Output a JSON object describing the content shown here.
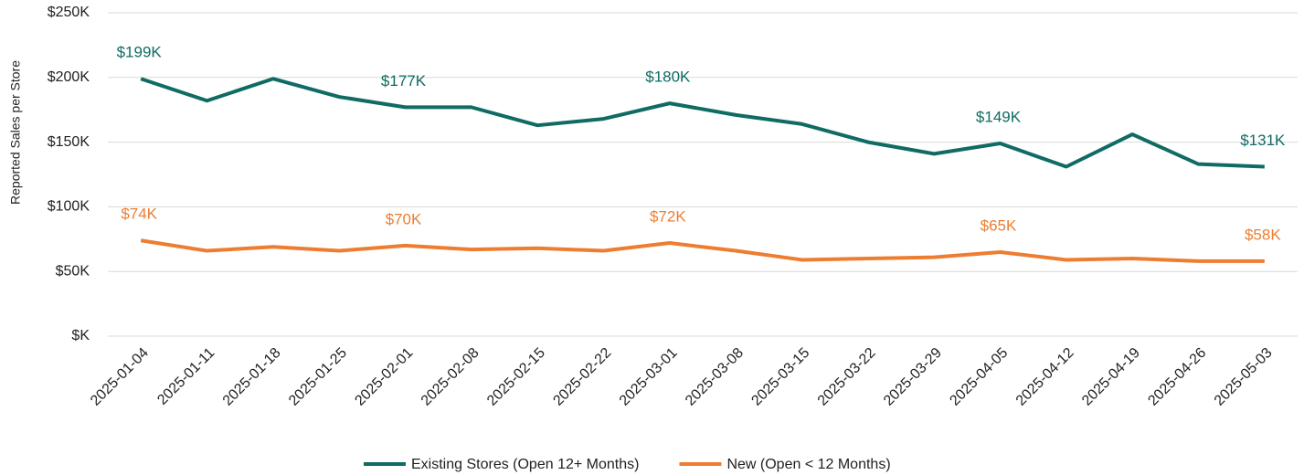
{
  "chart_data": {
    "type": "line",
    "y_label": "Reported Sales per Store",
    "categories": [
      "2025-01-04",
      "2025-01-11",
      "2025-01-18",
      "2025-01-25",
      "2025-02-01",
      "2025-02-08",
      "2025-02-15",
      "2025-02-22",
      "2025-03-01",
      "2025-03-08",
      "2025-03-15",
      "2025-03-22",
      "2025-03-29",
      "2025-04-05",
      "2025-04-12",
      "2025-04-19",
      "2025-04-26",
      "2025-05-03"
    ],
    "series": [
      {
        "name": "Existing Stores (Open 12+ Months)",
        "color": "#0f6b63",
        "values": [
          199000,
          182000,
          199000,
          185000,
          177000,
          177000,
          163000,
          168000,
          180000,
          171000,
          164000,
          150000,
          141000,
          149000,
          131000,
          156000,
          133000,
          131000
        ],
        "value_labels": [
          "$199K",
          null,
          null,
          null,
          "$177K",
          null,
          null,
          null,
          "$180K",
          null,
          null,
          null,
          null,
          "$149K",
          null,
          null,
          null,
          "$131K"
        ]
      },
      {
        "name": "New (Open < 12 Months)",
        "color": "#ed7d31",
        "values": [
          74000,
          66000,
          69000,
          66000,
          70000,
          67000,
          68000,
          66000,
          72000,
          66000,
          59000,
          60000,
          61000,
          65000,
          59000,
          60000,
          58000,
          58000
        ],
        "value_labels": [
          "$74K",
          null,
          null,
          null,
          "$70K",
          null,
          null,
          null,
          "$72K",
          null,
          null,
          null,
          null,
          "$65K",
          null,
          null,
          null,
          "$58K"
        ]
      }
    ],
    "ylim": [
      0,
      250000
    ],
    "yticks": [
      {
        "value": 0,
        "label": "$K"
      },
      {
        "value": 50000,
        "label": "$50K"
      },
      {
        "value": 100000,
        "label": "$100K"
      },
      {
        "value": 150000,
        "label": "$150K"
      },
      {
        "value": 200000,
        "label": "$200K"
      },
      {
        "value": 250000,
        "label": "$250K"
      }
    ],
    "grid": true,
    "legend": "bottom"
  }
}
